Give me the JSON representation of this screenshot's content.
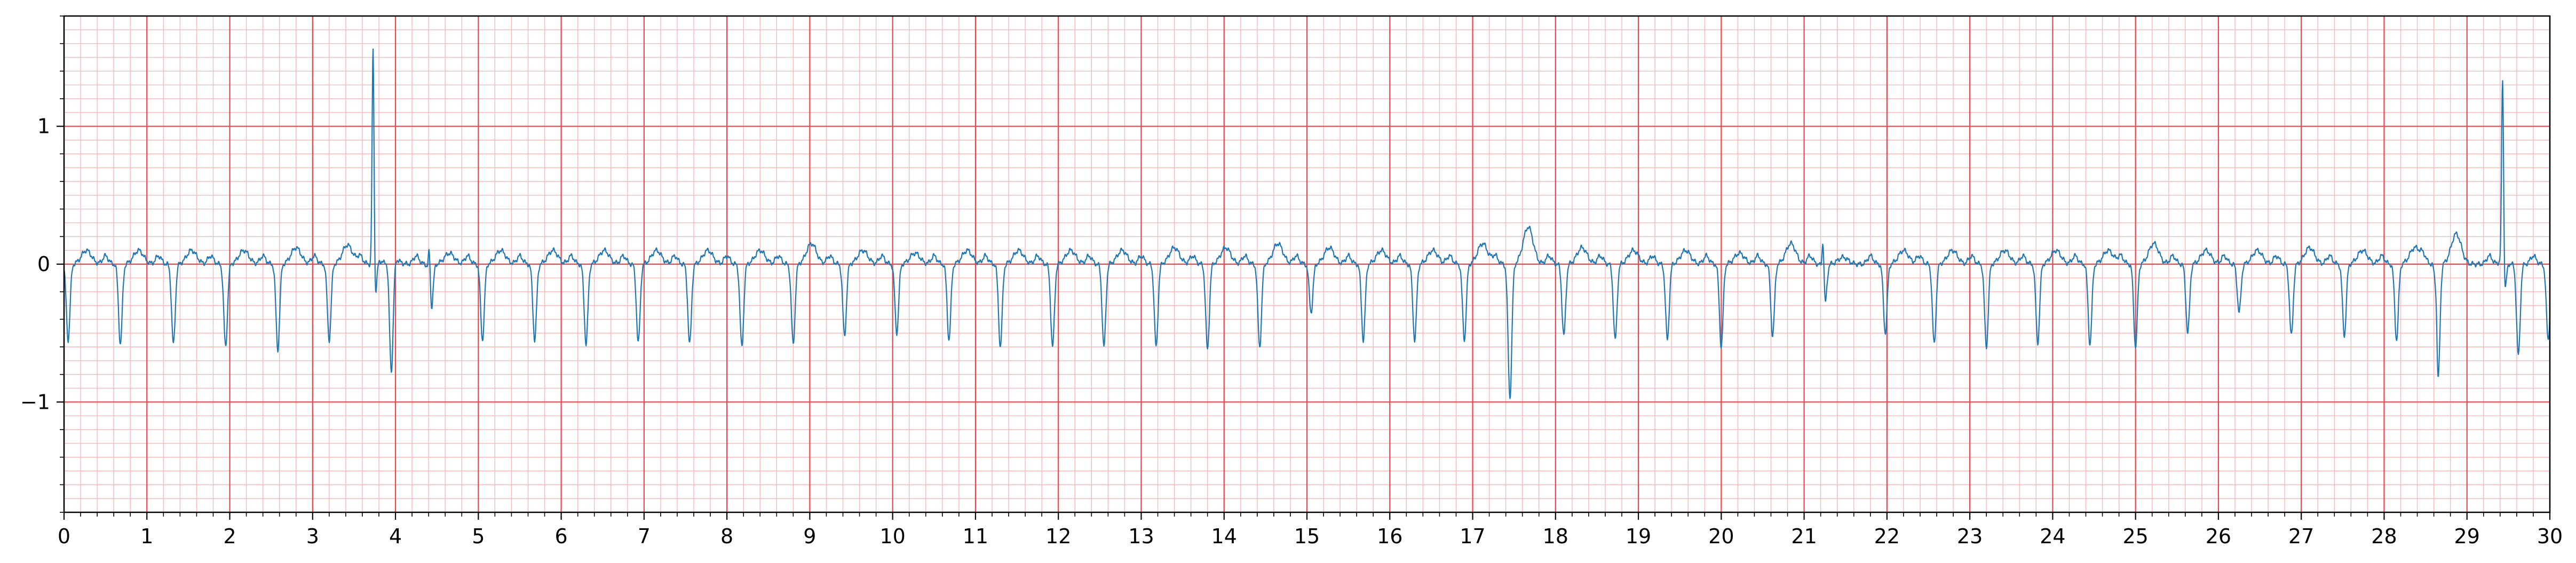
{
  "chart_data": {
    "type": "line",
    "title": "",
    "xlabel": "",
    "ylabel": "",
    "xlim": [
      0,
      30
    ],
    "ylim": [
      -1.8,
      1.8
    ],
    "grid": true,
    "x_major_ticks": [
      0,
      1,
      2,
      3,
      4,
      5,
      6,
      7,
      8,
      9,
      10,
      11,
      12,
      13,
      14,
      15,
      16,
      17,
      18,
      19,
      20,
      21,
      22,
      23,
      24,
      25,
      26,
      27,
      28,
      29,
      30
    ],
    "x_tick_labels": [
      "0",
      "1",
      "2",
      "3",
      "4",
      "5",
      "6",
      "7",
      "8",
      "9",
      "10",
      "11",
      "12",
      "13",
      "14",
      "15",
      "16",
      "17",
      "18",
      "19",
      "20",
      "21",
      "22",
      "23",
      "24",
      "25",
      "26",
      "27",
      "28",
      "29",
      "30"
    ],
    "x_minor_step": 0.2,
    "y_major_ticks": [
      -1,
      0,
      1
    ],
    "y_tick_labels": [
      "−1",
      "0",
      "1"
    ],
    "y_minor_step": 0.1,
    "colors": {
      "trace": "#1f77b4",
      "major_grid": "#e8474c",
      "minor_grid": "#f7b8ba",
      "axes": "#000000"
    },
    "series": [
      {
        "sampling": "ecg",
        "baseline": 0,
        "beats": [
          {
            "t": 0.05,
            "s": -0.55,
            "tw": 0.1
          },
          {
            "t": 0.68,
            "s": -0.58,
            "tw": 0.1
          },
          {
            "t": 1.32,
            "s": -0.58,
            "tw": 0.1
          },
          {
            "t": 1.95,
            "s": -0.6,
            "tw": 0.1
          },
          {
            "t": 2.58,
            "s": -0.62,
            "tw": 0.12
          },
          {
            "t": 3.2,
            "s": -0.55,
            "tw": 0.14
          },
          {
            "t": 3.75,
            "r": 1.75,
            "s": -0.35,
            "tw": 0.05
          },
          {
            "t": 3.95,
            "s": -0.82,
            "tw": 0.0
          },
          {
            "t": 4.43,
            "r": 0.3,
            "s": -0.35,
            "tw": 0.08
          },
          {
            "t": 5.05,
            "s": -0.55,
            "tw": 0.1
          },
          {
            "t": 5.68,
            "s": -0.55,
            "tw": 0.1
          },
          {
            "t": 6.3,
            "s": -0.58,
            "tw": 0.1
          },
          {
            "t": 6.93,
            "s": -0.57,
            "tw": 0.1
          },
          {
            "t": 7.55,
            "s": -0.58,
            "tw": 0.1
          },
          {
            "t": 8.18,
            "s": -0.6,
            "tw": 0.1
          },
          {
            "t": 8.8,
            "s": -0.58,
            "tw": 0.15
          },
          {
            "t": 9.42,
            "s": -0.52,
            "tw": 0.1
          },
          {
            "t": 10.05,
            "s": -0.5,
            "tw": 0.08
          },
          {
            "t": 10.68,
            "s": -0.55,
            "tw": 0.1
          },
          {
            "t": 11.3,
            "s": -0.6,
            "tw": 0.1
          },
          {
            "t": 11.93,
            "s": -0.6,
            "tw": 0.1
          },
          {
            "t": 12.55,
            "s": -0.6,
            "tw": 0.1
          },
          {
            "t": 13.18,
            "s": -0.6,
            "tw": 0.12
          },
          {
            "t": 13.8,
            "s": -0.62,
            "tw": 0.12
          },
          {
            "t": 14.43,
            "s": -0.6,
            "tw": 0.15
          },
          {
            "t": 15.05,
            "s": -0.35,
            "tw": 0.12
          },
          {
            "t": 15.68,
            "s": -0.55,
            "tw": 0.1
          },
          {
            "t": 16.3,
            "s": -0.55,
            "tw": 0.1
          },
          {
            "t": 16.9,
            "s": -0.55,
            "tw": 0.15
          },
          {
            "t": 17.45,
            "s": -0.97,
            "tw": 0.27
          },
          {
            "t": 18.1,
            "s": -0.52,
            "tw": 0.12
          },
          {
            "t": 18.72,
            "s": -0.55,
            "tw": 0.1
          },
          {
            "t": 19.35,
            "s": -0.55,
            "tw": 0.1
          },
          {
            "t": 20.0,
            "s": -0.6,
            "tw": 0.08
          },
          {
            "t": 20.62,
            "s": -0.52,
            "tw": 0.15
          },
          {
            "t": 21.25,
            "r": 0.35,
            "s": -0.32,
            "tw": 0.05
          },
          {
            "t": 21.98,
            "s": -0.5,
            "tw": 0.1
          },
          {
            "t": 22.57,
            "s": -0.58,
            "tw": 0.1
          },
          {
            "t": 23.2,
            "s": -0.6,
            "tw": 0.1
          },
          {
            "t": 23.82,
            "s": -0.57,
            "tw": 0.1
          },
          {
            "t": 24.45,
            "s": -0.58,
            "tw": 0.1
          },
          {
            "t": 25.0,
            "s": -0.6,
            "tw": 0.15
          },
          {
            "t": 25.63,
            "s": -0.5,
            "tw": 0.1
          },
          {
            "t": 26.25,
            "s": -0.35,
            "tw": 0.1
          },
          {
            "t": 26.88,
            "s": -0.52,
            "tw": 0.12
          },
          {
            "t": 27.52,
            "s": -0.52,
            "tw": 0.1
          },
          {
            "t": 28.15,
            "s": -0.55,
            "tw": 0.12
          },
          {
            "t": 28.65,
            "r": 0.25,
            "s": -0.88,
            "tw": 0.22
          },
          {
            "t": 29.45,
            "r": 1.48,
            "s": -0.3,
            "tw": 0.0
          },
          {
            "t": 29.62,
            "s": -0.66,
            "tw": 0.0
          },
          {
            "t": 29.98,
            "s": -0.55,
            "tw": 0.05
          }
        ]
      }
    ]
  }
}
